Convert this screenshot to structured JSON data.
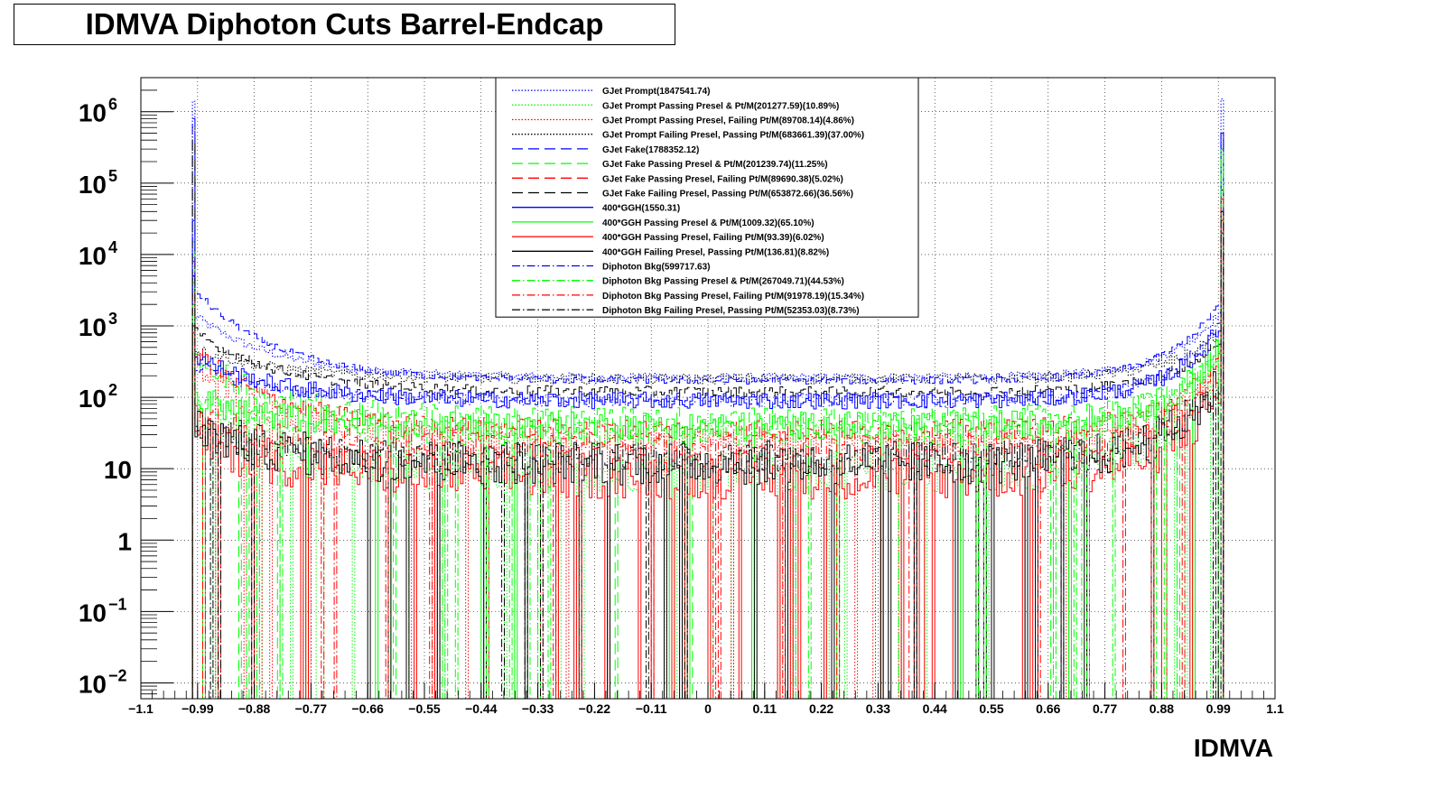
{
  "title": "IDMVA Diphoton Cuts Barrel-Endcap",
  "chart_data": {
    "type": "line",
    "title": "IDMVA Diphoton Cuts Barrel-Endcap",
    "xlabel": "IDMVA",
    "ylabel": "",
    "xlim": [
      -1.1,
      1.1
    ],
    "ylim": [
      0.006,
      3000000
    ],
    "y_scale": "log",
    "grid": true,
    "x_ticks": [
      -1.1,
      -0.99,
      -0.88,
      -0.77,
      -0.66,
      -0.55,
      -0.44,
      -0.33,
      -0.22,
      -0.11,
      0,
      0.11,
      0.22,
      0.33,
      0.44,
      0.55,
      0.66,
      0.77,
      0.88,
      0.99,
      1.1
    ],
    "x_tick_labels": [
      "−1.1",
      "−0.99",
      "−0.88",
      "−0.77",
      "−0.66",
      "−0.55",
      "−0.44",
      "−0.33",
      "−0.22",
      "−0.11",
      "0",
      "0.11",
      "0.22",
      "0.33",
      "0.44",
      "0.55",
      "0.66",
      "0.77",
      "0.88",
      "0.99",
      "1.1"
    ],
    "y_ticks": [
      {
        "value": 0.01,
        "base": "10",
        "exp": "−2"
      },
      {
        "value": 0.1,
        "base": "10",
        "exp": "−1"
      },
      {
        "value": 1,
        "base": "1",
        "exp": ""
      },
      {
        "value": 10,
        "base": "10",
        "exp": ""
      },
      {
        "value": 100,
        "base": "10",
        "exp": "2"
      },
      {
        "value": 1000,
        "base": "10",
        "exp": "3"
      },
      {
        "value": 10000,
        "base": "10",
        "exp": "4"
      },
      {
        "value": 100000,
        "base": "10",
        "exp": "5"
      },
      {
        "value": 1000000,
        "base": "10",
        "exp": "6"
      }
    ],
    "legend_position": "top-center",
    "series": [
      {
        "name": "GJet Prompt(1847541.74)",
        "color": "#0000ff",
        "style": "dotted",
        "edge_low": 1400000,
        "edge_high": 1500000,
        "left_shoulder": 1500,
        "minimum": 190,
        "right_shoulder": 1800,
        "noise": 0.12
      },
      {
        "name": "GJet Prompt Passing Presel & Pt/M(201277.59)(10.89%)",
        "color": "#00ff00",
        "style": "dotted",
        "edge_low": 9000,
        "edge_high": 300000,
        "left_shoulder": 60,
        "minimum": 9,
        "right_shoulder": 600,
        "noise": 0.6
      },
      {
        "name": "GJet Prompt Passing Presel, Failing Pt/M(89708.14)(4.86%)",
        "color": "#ff0000",
        "style": "dotted",
        "edge_low": 8000,
        "edge_high": 100000,
        "left_shoulder": 300,
        "minimum": 25,
        "right_shoulder": 300,
        "noise": 0.35
      },
      {
        "name": "GJet Prompt Failing Presel, Passing Pt/M(683661.39)(37.00%)",
        "color": "#000000",
        "style": "dotted",
        "edge_low": 600000,
        "edge_high": 150000,
        "left_shoulder": 500,
        "minimum": 180,
        "right_shoulder": 900,
        "noise": 0.15
      },
      {
        "name": "GJet Fake(1788352.12)",
        "color": "#0000ff",
        "style": "dashed",
        "edge_low": 800000,
        "edge_high": 500000,
        "left_shoulder": 3500,
        "minimum": 170,
        "right_shoulder": 2500,
        "noise": 0.1
      },
      {
        "name": "GJet Fake Passing Presel & Pt/M(201239.74)(11.25%)",
        "color": "#00ff00",
        "style": "dashed",
        "edge_low": 15000,
        "edge_high": 30000,
        "left_shoulder": 400,
        "minimum": 50,
        "right_shoulder": 500,
        "noise": 0.35
      },
      {
        "name": "GJet Fake Passing Presel, Failing Pt/M(89690.38)(5.02%)",
        "color": "#ff0000",
        "style": "dashed",
        "edge_low": 10000,
        "edge_high": 40000,
        "left_shoulder": 500,
        "minimum": 35,
        "right_shoulder": 400,
        "noise": 0.3
      },
      {
        "name": "GJet Fake Failing Presel, Passing Pt/M(653872.66)(36.56%)",
        "color": "#000000",
        "style": "dashed",
        "edge_low": 400000,
        "edge_high": 80000,
        "left_shoulder": 900,
        "minimum": 120,
        "right_shoulder": 700,
        "noise": 0.15
      },
      {
        "name": "400*GGH(1550.31)",
        "color": "#0000ff",
        "style": "solid",
        "edge_low": 5000,
        "edge_high": 500000,
        "left_shoulder": 400,
        "minimum": 90,
        "right_shoulder": 1000,
        "noise": 0.25
      },
      {
        "name": "400*GGH Passing Presel & Pt/M(1009.32)(65.10%)",
        "color": "#00ff00",
        "style": "solid",
        "edge_low": 2000,
        "edge_high": 300000,
        "left_shoulder": 100,
        "minimum": 40,
        "right_shoulder": 600,
        "noise": 0.4
      },
      {
        "name": "400*GGH Passing Presel, Failing Pt/M(93.39)(6.02%)",
        "color": "#ff0000",
        "style": "solid",
        "edge_low": 800,
        "edge_high": 30000,
        "left_shoulder": 30,
        "minimum": 8,
        "right_shoulder": 150,
        "noise": 0.7
      },
      {
        "name": "400*GGH Failing Presel, Passing Pt/M(136.81)(8.82%)",
        "color": "#000000",
        "style": "solid",
        "edge_low": 1000,
        "edge_high": 20000,
        "left_shoulder": 40,
        "minimum": 12,
        "right_shoulder": 200,
        "noise": 0.65
      },
      {
        "name": "Diphoton Bkg(599717.63)",
        "color": "#0000ff",
        "style": "dashdot",
        "edge_low": 30000,
        "edge_high": 400000,
        "left_shoulder": 300,
        "minimum": 90,
        "right_shoulder": 1200,
        "noise": 0.2
      },
      {
        "name": "Diphoton Bkg Passing Presel & Pt/M(267049.71)(44.53%)",
        "color": "#00ff00",
        "style": "dashdot",
        "edge_low": 4000,
        "edge_high": 250000,
        "left_shoulder": 90,
        "minimum": 30,
        "right_shoulder": 700,
        "noise": 0.35
      },
      {
        "name": "Diphoton Bkg Passing Presel, Failing Pt/M(91978.19)(15.34%)",
        "color": "#ff0000",
        "style": "dashdot",
        "edge_low": 3000,
        "edge_high": 60000,
        "left_shoulder": 60,
        "minimum": 20,
        "right_shoulder": 300,
        "noise": 0.4
      },
      {
        "name": "Diphoton Bkg Failing Presel, Passing Pt/M(52353.03)(8.73%)",
        "color": "#000000",
        "style": "dashdot",
        "edge_low": 5000,
        "edge_high": 40000,
        "left_shoulder": 40,
        "minimum": 14,
        "right_shoulder": 250,
        "noise": 0.45
      }
    ]
  }
}
